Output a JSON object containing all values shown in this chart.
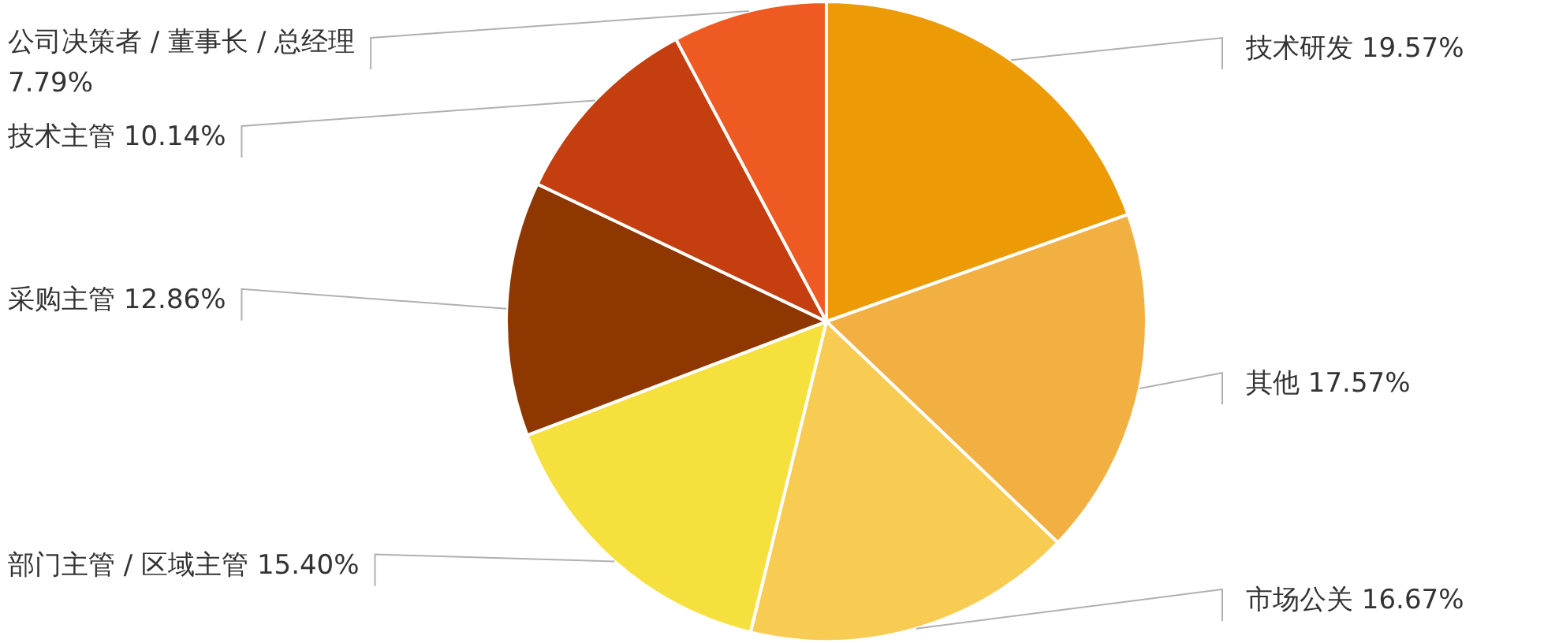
{
  "chart_data": {
    "type": "pie",
    "categories": [
      "技术研发",
      "其他",
      "市场公关",
      "部门主管 / 区域主管",
      "采购主管",
      "技术主管",
      "公司决策者 / 董事长 / 总经理"
    ],
    "values": [
      19.57,
      17.57,
      16.67,
      15.4,
      12.86,
      10.14,
      7.79
    ],
    "value_labels": [
      "19.57%",
      "17.57%",
      "16.67%",
      "15.40%",
      "12.86%",
      "10.14%",
      "7.79%"
    ],
    "colors": [
      "#ec9a06",
      "#f3b042",
      "#f8cb52",
      "#f6e03e",
      "#8e3700",
      "#c43e10",
      "#ef5a22"
    ]
  }
}
